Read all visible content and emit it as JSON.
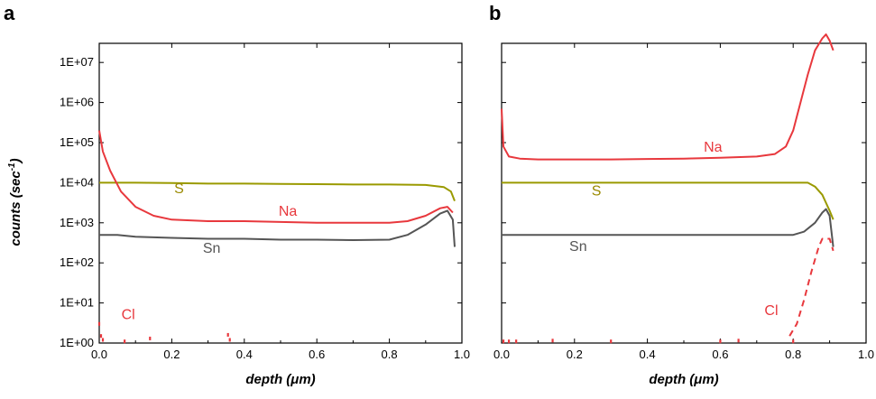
{
  "figure": {
    "ylabel_main": "counts (sec",
    "ylabel_sup": "-1",
    "ylabel_close": ")"
  },
  "chart_data": [
    {
      "type": "line",
      "panel": "a",
      "xlabel": "depth (μm)",
      "xlim": [
        0,
        1.0
      ],
      "ylim": [
        1,
        30000000
      ],
      "yscale": "log",
      "xticks": [
        "0.0",
        "0.2",
        "0.4",
        "0.6",
        "0.8",
        "1.0"
      ],
      "yticks": [
        "1E+00",
        "1E+01",
        "1E+02",
        "1E+03",
        "1E+04",
        "1E+05",
        "1E+06",
        "1E+07"
      ],
      "series": [
        {
          "name": "S",
          "color": "#9a9a00",
          "dash": "solid",
          "x": [
            0.0,
            0.1,
            0.2,
            0.3,
            0.4,
            0.5,
            0.6,
            0.7,
            0.8,
            0.9,
            0.95,
            0.97,
            0.98
          ],
          "y": [
            10000,
            10000,
            9800,
            9500,
            9500,
            9300,
            9200,
            9000,
            9000,
            8800,
            7800,
            6000,
            3500
          ]
        },
        {
          "name": "Na",
          "color": "#e8383d",
          "dash": "solid",
          "x": [
            0.0,
            0.01,
            0.03,
            0.06,
            0.1,
            0.15,
            0.2,
            0.3,
            0.4,
            0.5,
            0.6,
            0.7,
            0.8,
            0.85,
            0.9,
            0.94,
            0.96,
            0.975
          ],
          "y": [
            200000,
            60000,
            20000,
            6000,
            2500,
            1500,
            1200,
            1100,
            1100,
            1050,
            1000,
            1000,
            1000,
            1100,
            1500,
            2300,
            2500,
            1800
          ]
        },
        {
          "name": "Sn",
          "color": "#555555",
          "dash": "solid",
          "x": [
            0.0,
            0.05,
            0.1,
            0.2,
            0.3,
            0.4,
            0.5,
            0.6,
            0.7,
            0.8,
            0.85,
            0.9,
            0.94,
            0.96,
            0.975,
            0.98
          ],
          "y": [
            500,
            500,
            450,
            420,
            400,
            400,
            380,
            380,
            370,
            380,
            500,
            900,
            1700,
            2000,
            1200,
            250
          ]
        },
        {
          "name": "Cl",
          "color": "#e8383d",
          "dash": "points",
          "x": [
            0.0,
            0.005,
            0.01,
            0.07,
            0.14,
            0.355,
            0.36
          ],
          "y": [
            3,
            1.5,
            1.2,
            1.1,
            1.3,
            1.6,
            1.2
          ]
        }
      ],
      "labels": [
        {
          "text": "S",
          "x": 0.22,
          "y": 5500,
          "color": "#9a8a00"
        },
        {
          "text": "Na",
          "x": 0.52,
          "y": 1500,
          "color": "#e8383d"
        },
        {
          "text": "Sn",
          "x": 0.31,
          "y": 180,
          "color": "#555555"
        },
        {
          "text": "Cl",
          "x": 0.08,
          "y": 4,
          "color": "#e8383d"
        }
      ]
    },
    {
      "type": "line",
      "panel": "b",
      "xlabel": "depth (μm)",
      "xlim": [
        0,
        1.0
      ],
      "ylim": [
        1,
        30000000
      ],
      "yscale": "log",
      "xticks": [
        "0.0",
        "0.2",
        "0.4",
        "0.6",
        "0.8",
        "1.0"
      ],
      "yticks": [],
      "series": [
        {
          "name": "Na",
          "color": "#e8383d",
          "dash": "solid",
          "x": [
            0.0,
            0.005,
            0.02,
            0.05,
            0.1,
            0.2,
            0.3,
            0.4,
            0.5,
            0.6,
            0.7,
            0.75,
            0.78,
            0.8,
            0.82,
            0.84,
            0.86,
            0.88,
            0.89,
            0.9,
            0.91
          ],
          "y": [
            700000,
            80000,
            45000,
            40000,
            38000,
            38000,
            38000,
            39000,
            40000,
            42000,
            45000,
            52000,
            80000,
            200000,
            1000000,
            5000000,
            20000000,
            40000000,
            50000000,
            35000000,
            20000000
          ]
        },
        {
          "name": "S",
          "color": "#9a9a00",
          "dash": "solid",
          "x": [
            0.0,
            0.1,
            0.2,
            0.3,
            0.4,
            0.5,
            0.6,
            0.7,
            0.8,
            0.84,
            0.86,
            0.88,
            0.9,
            0.91
          ],
          "y": [
            10000,
            10000,
            10000,
            10000,
            10000,
            10000,
            10000,
            10000,
            10000,
            10000,
            8000,
            5000,
            2000,
            1200
          ]
        },
        {
          "name": "Sn",
          "color": "#555555",
          "dash": "solid",
          "x": [
            0.0,
            0.1,
            0.2,
            0.3,
            0.4,
            0.5,
            0.6,
            0.7,
            0.8,
            0.83,
            0.86,
            0.88,
            0.89,
            0.9,
            0.91
          ],
          "y": [
            500,
            500,
            500,
            500,
            500,
            500,
            500,
            500,
            500,
            600,
            1000,
            1800,
            2200,
            1500,
            250
          ]
        },
        {
          "name": "Cl",
          "color": "#e8383d",
          "dash": "dashed",
          "x": [
            0.79,
            0.81,
            0.83,
            0.85,
            0.87,
            0.88,
            0.9,
            0.91
          ],
          "y": [
            1.5,
            3,
            12,
            60,
            250,
            400,
            400,
            200
          ]
        },
        {
          "name": "Cl",
          "color": "#e8383d",
          "dash": "points",
          "x": [
            0.005,
            0.02,
            0.04,
            0.14,
            0.3,
            0.6,
            0.65,
            0.8
          ],
          "y": [
            1.1,
            1.1,
            1.1,
            1.15,
            1.1,
            1.1,
            1.15,
            1.1
          ]
        }
      ],
      "labels": [
        {
          "text": "Na",
          "x": 0.58,
          "y": 60000,
          "color": "#e8383d"
        },
        {
          "text": "S",
          "x": 0.26,
          "y": 4800,
          "color": "#9a8a00"
        },
        {
          "text": "Sn",
          "x": 0.21,
          "y": 200,
          "color": "#555555"
        },
        {
          "text": "Cl",
          "x": 0.74,
          "y": 5,
          "color": "#e8383d"
        }
      ]
    }
  ]
}
